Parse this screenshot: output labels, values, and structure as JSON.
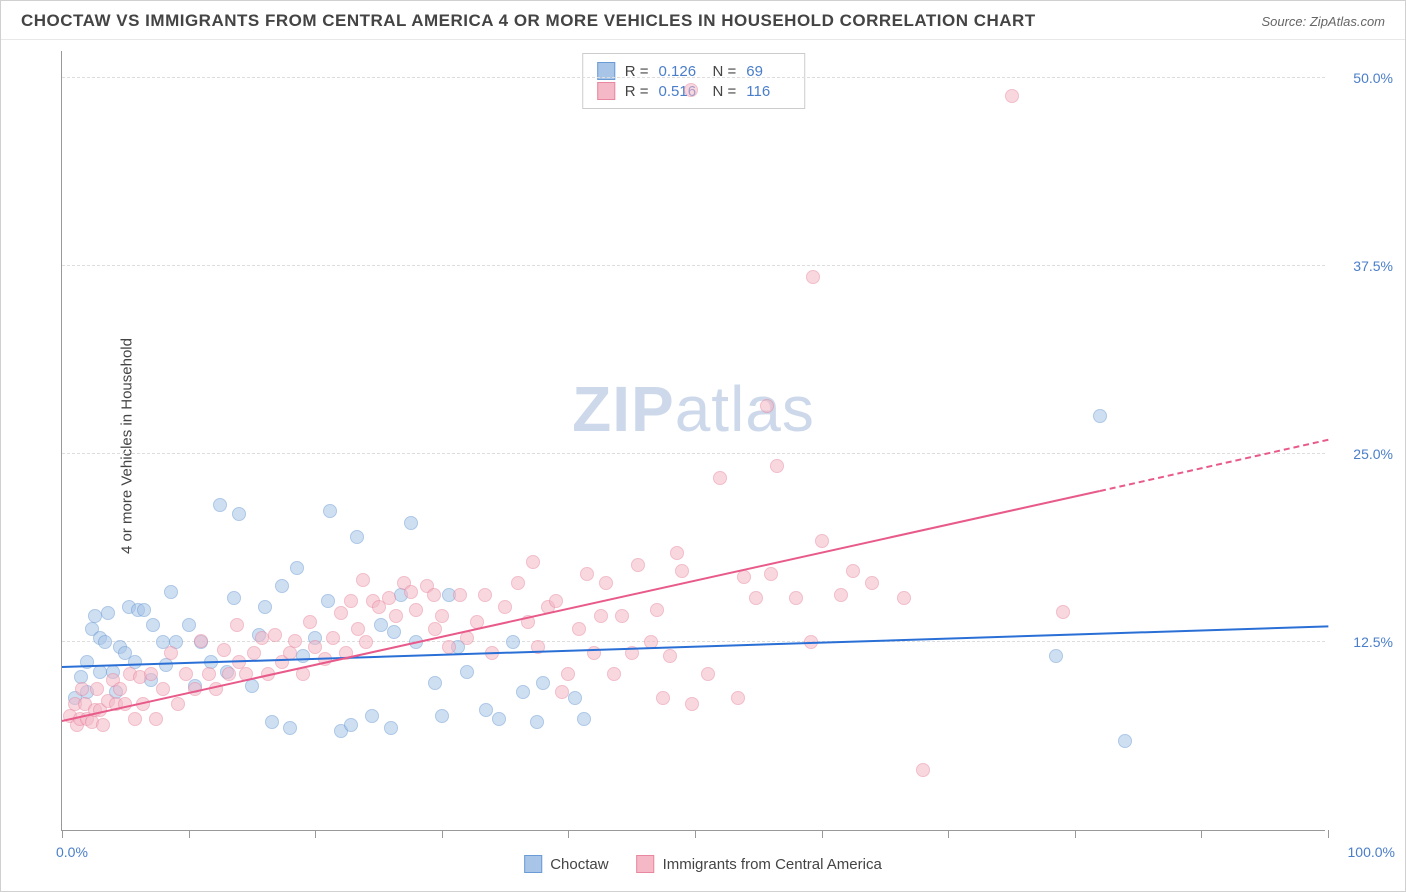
{
  "header": {
    "title": "CHOCTAW VS IMMIGRANTS FROM CENTRAL AMERICA 4 OR MORE VEHICLES IN HOUSEHOLD CORRELATION CHART",
    "source": "Source: ZipAtlas.com"
  },
  "watermark": {
    "prefix": "ZIP",
    "suffix": "atlas"
  },
  "axis": {
    "y_title": "4 or more Vehicles in Household",
    "x_labels": {
      "min": "0.0%",
      "max": "100.0%"
    },
    "y_labels": [
      "12.5%",
      "25.0%",
      "37.5%",
      "50.0%"
    ]
  },
  "chart": {
    "type": "scatter",
    "xlim": [
      0,
      100
    ],
    "ylim": [
      0,
      52
    ],
    "y_gridlines": [
      12.5,
      25.0,
      37.5,
      50.0
    ],
    "x_ticks": [
      0,
      10,
      20,
      30,
      40,
      50,
      60,
      70,
      80,
      90,
      100
    ],
    "background_color": "#ffffff",
    "grid_color": "#dddddd",
    "axis_color": "#999999",
    "label_color": "#4a7ec9",
    "marker_radius": 7,
    "marker_stroke_width": 1.5,
    "series": [
      {
        "name": "Choctaw",
        "fill_color": "#a8c5e8",
        "stroke_color": "#6a9bd4",
        "fill_opacity": 0.55,
        "R": "0.126",
        "N": "69",
        "trend": {
          "x1": 0,
          "y1": 10.8,
          "x2": 100,
          "y2": 13.5,
          "color": "#2a6fd6",
          "width": 2
        },
        "points": [
          [
            1,
            8.8
          ],
          [
            1.5,
            10.2
          ],
          [
            2,
            11.2
          ],
          [
            2,
            9.2
          ],
          [
            2.4,
            13.4
          ],
          [
            2.6,
            14.2
          ],
          [
            3,
            10.5
          ],
          [
            3,
            12.8
          ],
          [
            3.4,
            12.5
          ],
          [
            3.6,
            14.4
          ],
          [
            4,
            10.5
          ],
          [
            4.3,
            9.2
          ],
          [
            4.6,
            12.2
          ],
          [
            5,
            11.8
          ],
          [
            5.3,
            14.8
          ],
          [
            5.8,
            11.2
          ],
          [
            6,
            14.6
          ],
          [
            6.5,
            14.6
          ],
          [
            7,
            10
          ],
          [
            7.2,
            13.6
          ],
          [
            8,
            12.5
          ],
          [
            8.2,
            11
          ],
          [
            8.6,
            15.8
          ],
          [
            9,
            12.5
          ],
          [
            10,
            13.6
          ],
          [
            10.5,
            9.6
          ],
          [
            11,
            12.5
          ],
          [
            11.8,
            11.2
          ],
          [
            12.5,
            21.6
          ],
          [
            13,
            10.5
          ],
          [
            13.6,
            15.4
          ],
          [
            14,
            21
          ],
          [
            15,
            9.6
          ],
          [
            15.6,
            13
          ],
          [
            16,
            14.8
          ],
          [
            16.6,
            7.2
          ],
          [
            17.4,
            16.2
          ],
          [
            18,
            6.8
          ],
          [
            18.6,
            17.4
          ],
          [
            19,
            11.6
          ],
          [
            20,
            12.8
          ],
          [
            21,
            15.2
          ],
          [
            21.2,
            21.2
          ],
          [
            22,
            6.6
          ],
          [
            22.8,
            7
          ],
          [
            23.3,
            19.5
          ],
          [
            24.5,
            7.6
          ],
          [
            25.2,
            13.6
          ],
          [
            26,
            6.8
          ],
          [
            26.2,
            13.2
          ],
          [
            26.8,
            15.6
          ],
          [
            27.6,
            20.4
          ],
          [
            28,
            12.5
          ],
          [
            29.5,
            9.8
          ],
          [
            30,
            7.6
          ],
          [
            30.6,
            15.6
          ],
          [
            31.3,
            12.2
          ],
          [
            32,
            10.5
          ],
          [
            33.5,
            8
          ],
          [
            34.5,
            7.4
          ],
          [
            35.6,
            12.5
          ],
          [
            36.4,
            9.2
          ],
          [
            37.5,
            7.2
          ],
          [
            38,
            9.8
          ],
          [
            40.5,
            8.8
          ],
          [
            41.2,
            7.4
          ],
          [
            78.5,
            11.6
          ],
          [
            82,
            27.5
          ],
          [
            84,
            5.9
          ]
        ]
      },
      {
        "name": "Immigrants from Central America",
        "fill_color": "#f4b8c6",
        "stroke_color": "#e888a0",
        "fill_opacity": 0.55,
        "R": "0.516",
        "N": "116",
        "trend": {
          "x1": 0,
          "y1": 7.2,
          "x2": 82,
          "y2": 22.5,
          "color": "#e85a8a",
          "width": 2,
          "ext": {
            "x1": 82,
            "y1": 22.5,
            "x2": 100,
            "y2": 25.9,
            "dash": true
          }
        },
        "points": [
          [
            0.6,
            7.6
          ],
          [
            1,
            8.4
          ],
          [
            1.2,
            7
          ],
          [
            1.4,
            7.4
          ],
          [
            1.6,
            9.4
          ],
          [
            1.8,
            8.4
          ],
          [
            2,
            7.4
          ],
          [
            2.4,
            7.2
          ],
          [
            2.6,
            8
          ],
          [
            2.8,
            9.4
          ],
          [
            3,
            8
          ],
          [
            3.2,
            7
          ],
          [
            3.6,
            8.6
          ],
          [
            4,
            10
          ],
          [
            4.3,
            8.4
          ],
          [
            4.6,
            9.4
          ],
          [
            5,
            8.4
          ],
          [
            5.4,
            10.4
          ],
          [
            5.8,
            7.4
          ],
          [
            6.2,
            10.2
          ],
          [
            6.4,
            8.4
          ],
          [
            7,
            10.4
          ],
          [
            7.4,
            7.4
          ],
          [
            8,
            9.4
          ],
          [
            8.6,
            11.8
          ],
          [
            9.2,
            8.4
          ],
          [
            9.8,
            10.4
          ],
          [
            10.5,
            9.4
          ],
          [
            11,
            12.6
          ],
          [
            11.6,
            10.4
          ],
          [
            12.2,
            9.4
          ],
          [
            12.8,
            12
          ],
          [
            13.2,
            10.4
          ],
          [
            13.8,
            13.6
          ],
          [
            14,
            11.2
          ],
          [
            14.5,
            10.4
          ],
          [
            15.2,
            11.8
          ],
          [
            15.8,
            12.8
          ],
          [
            16.3,
            10.4
          ],
          [
            16.8,
            13
          ],
          [
            17.4,
            11.2
          ],
          [
            18,
            11.8
          ],
          [
            18.4,
            12.6
          ],
          [
            19,
            10.4
          ],
          [
            19.6,
            13.8
          ],
          [
            20,
            12.2
          ],
          [
            20.8,
            11.4
          ],
          [
            21.4,
            12.8
          ],
          [
            22,
            14.4
          ],
          [
            22.4,
            11.8
          ],
          [
            22.8,
            15.2
          ],
          [
            23.4,
            13.4
          ],
          [
            24,
            12.5
          ],
          [
            24.6,
            15.2
          ],
          [
            25,
            14.8
          ],
          [
            25.8,
            15.4
          ],
          [
            26.4,
            14.2
          ],
          [
            27,
            16.4
          ],
          [
            27.6,
            15.8
          ],
          [
            28,
            14.6
          ],
          [
            28.8,
            16.2
          ],
          [
            29.4,
            15.6
          ],
          [
            30,
            14.2
          ],
          [
            30.6,
            12.2
          ],
          [
            31.4,
            15.6
          ],
          [
            32,
            12.8
          ],
          [
            32.8,
            13.8
          ],
          [
            33.4,
            15.6
          ],
          [
            34,
            11.8
          ],
          [
            35,
            14.8
          ],
          [
            36,
            16.4
          ],
          [
            36.8,
            13.8
          ],
          [
            37.2,
            17.8
          ],
          [
            37.6,
            12.2
          ],
          [
            38.4,
            14.8
          ],
          [
            39,
            15.2
          ],
          [
            39.5,
            9.2
          ],
          [
            40,
            10.4
          ],
          [
            40.8,
            13.4
          ],
          [
            41.5,
            17
          ],
          [
            42,
            11.8
          ],
          [
            42.6,
            14.2
          ],
          [
            43,
            16.4
          ],
          [
            43.6,
            10.4
          ],
          [
            44.2,
            14.2
          ],
          [
            45,
            11.8
          ],
          [
            45.5,
            17.6
          ],
          [
            46.5,
            12.5
          ],
          [
            47,
            14.6
          ],
          [
            47.5,
            8.8
          ],
          [
            48,
            11.6
          ],
          [
            49,
            17.2
          ],
          [
            49.8,
            8.4
          ],
          [
            48.6,
            18.4
          ],
          [
            51,
            10.4
          ],
          [
            49.7,
            49.2
          ],
          [
            52,
            23.4
          ],
          [
            53.4,
            8.8
          ],
          [
            53.9,
            16.8
          ],
          [
            54.8,
            15.4
          ],
          [
            55.7,
            28.2
          ],
          [
            56,
            17
          ],
          [
            56.5,
            24.2
          ],
          [
            58,
            15.4
          ],
          [
            59.2,
            12.5
          ],
          [
            59.3,
            36.8
          ],
          [
            60,
            19.2
          ],
          [
            61.5,
            15.6
          ],
          [
            62.5,
            17.2
          ],
          [
            64,
            16.4
          ],
          [
            66.5,
            15.4
          ],
          [
            68,
            4
          ],
          [
            75,
            48.8
          ],
          [
            79.1,
            14.5
          ],
          [
            29.5,
            13.4
          ],
          [
            23.8,
            16.6
          ]
        ]
      }
    ]
  },
  "stats_box": {
    "rows": [
      {
        "swatch_fill": "#a8c5e8",
        "swatch_border": "#6a9bd4",
        "r_label": "R =",
        "r_val": "0.126",
        "n_label": "N =",
        "n_val": "69"
      },
      {
        "swatch_fill": "#f4b8c6",
        "swatch_border": "#e888a0",
        "r_label": "R =",
        "r_val": "0.516",
        "n_label": "N =",
        "n_val": "116"
      }
    ]
  },
  "bottom_legend": {
    "items": [
      {
        "swatch_fill": "#a8c5e8",
        "swatch_border": "#6a9bd4",
        "label": "Choctaw"
      },
      {
        "swatch_fill": "#f4b8c6",
        "swatch_border": "#e888a0",
        "label": "Immigrants from Central America"
      }
    ]
  }
}
